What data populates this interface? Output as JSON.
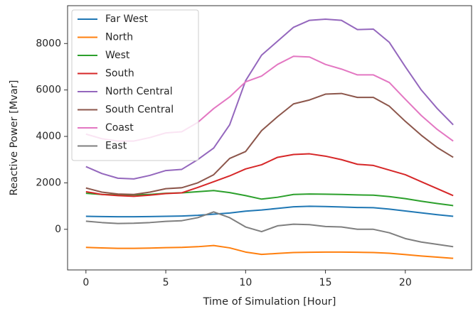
{
  "chart_data": {
    "type": "line",
    "x_label": "Time of Simulation [Hour]",
    "y_label": "Reactive Power [Mvar]",
    "x": [
      0,
      1,
      2,
      3,
      4,
      5,
      6,
      7,
      8,
      9,
      10,
      11,
      12,
      13,
      14,
      15,
      16,
      17,
      18,
      19,
      20,
      21,
      22,
      23
    ],
    "xlim": [
      -1.15,
      24.15
    ],
    "xticks": [
      0,
      5,
      10,
      15,
      20
    ],
    "ylim": [
      -1750,
      9630
    ],
    "yticks": [
      0,
      2000,
      4000,
      6000,
      8000
    ],
    "legend": "upper left",
    "series": [
      {
        "name": "Far West",
        "color": "#1f77b4",
        "values": [
          560,
          550,
          540,
          540,
          550,
          560,
          570,
          600,
          650,
          700,
          780,
          830,
          900,
          970,
          990,
          980,
          960,
          940,
          930,
          870,
          790,
          710,
          630,
          560
        ]
      },
      {
        "name": "North",
        "color": "#ff7f0e",
        "values": [
          -780,
          -800,
          -820,
          -820,
          -810,
          -790,
          -780,
          -750,
          -700,
          -800,
          -980,
          -1080,
          -1040,
          -1000,
          -990,
          -980,
          -980,
          -990,
          -1000,
          -1030,
          -1090,
          -1150,
          -1200,
          -1250
        ]
      },
      {
        "name": "West",
        "color": "#2ca02c",
        "values": [
          1550,
          1500,
          1480,
          1480,
          1500,
          1550,
          1570,
          1620,
          1670,
          1580,
          1450,
          1300,
          1380,
          1500,
          1520,
          1510,
          1500,
          1480,
          1470,
          1410,
          1320,
          1210,
          1110,
          1020
        ]
      },
      {
        "name": "South",
        "color": "#d62728",
        "values": [
          1620,
          1500,
          1450,
          1420,
          1470,
          1540,
          1570,
          1800,
          2050,
          2300,
          2600,
          2780,
          3100,
          3220,
          3250,
          3150,
          3000,
          2800,
          2750,
          2550,
          2350,
          2050,
          1750,
          1450
        ]
      },
      {
        "name": "North Central",
        "color": "#9467bd",
        "values": [
          2700,
          2400,
          2200,
          2170,
          2320,
          2530,
          2580,
          3000,
          3500,
          4500,
          6400,
          7500,
          8100,
          8700,
          9000,
          9050,
          9000,
          8600,
          8620,
          8050,
          7000,
          6000,
          5200,
          4500
        ]
      },
      {
        "name": "South Central",
        "color": "#8c564b",
        "values": [
          1780,
          1600,
          1520,
          1500,
          1600,
          1750,
          1790,
          2000,
          2350,
          3050,
          3350,
          4250,
          4850,
          5400,
          5570,
          5820,
          5850,
          5680,
          5680,
          5300,
          4650,
          4050,
          3520,
          3100
        ]
      },
      {
        "name": "Coast",
        "color": "#e377c2",
        "values": [
          4100,
          3900,
          3800,
          3800,
          3950,
          4150,
          4200,
          4600,
          5200,
          5700,
          6350,
          6600,
          7100,
          7450,
          7420,
          7100,
          6900,
          6650,
          6650,
          6320,
          5600,
          4900,
          4300,
          3800
        ]
      },
      {
        "name": "East",
        "color": "#7f7f7f",
        "values": [
          350,
          290,
          250,
          260,
          290,
          340,
          370,
          500,
          750,
          500,
          100,
          -100,
          150,
          220,
          200,
          120,
          100,
          0,
          0,
          -150,
          -400,
          -550,
          -650,
          -750
        ]
      }
    ]
  }
}
